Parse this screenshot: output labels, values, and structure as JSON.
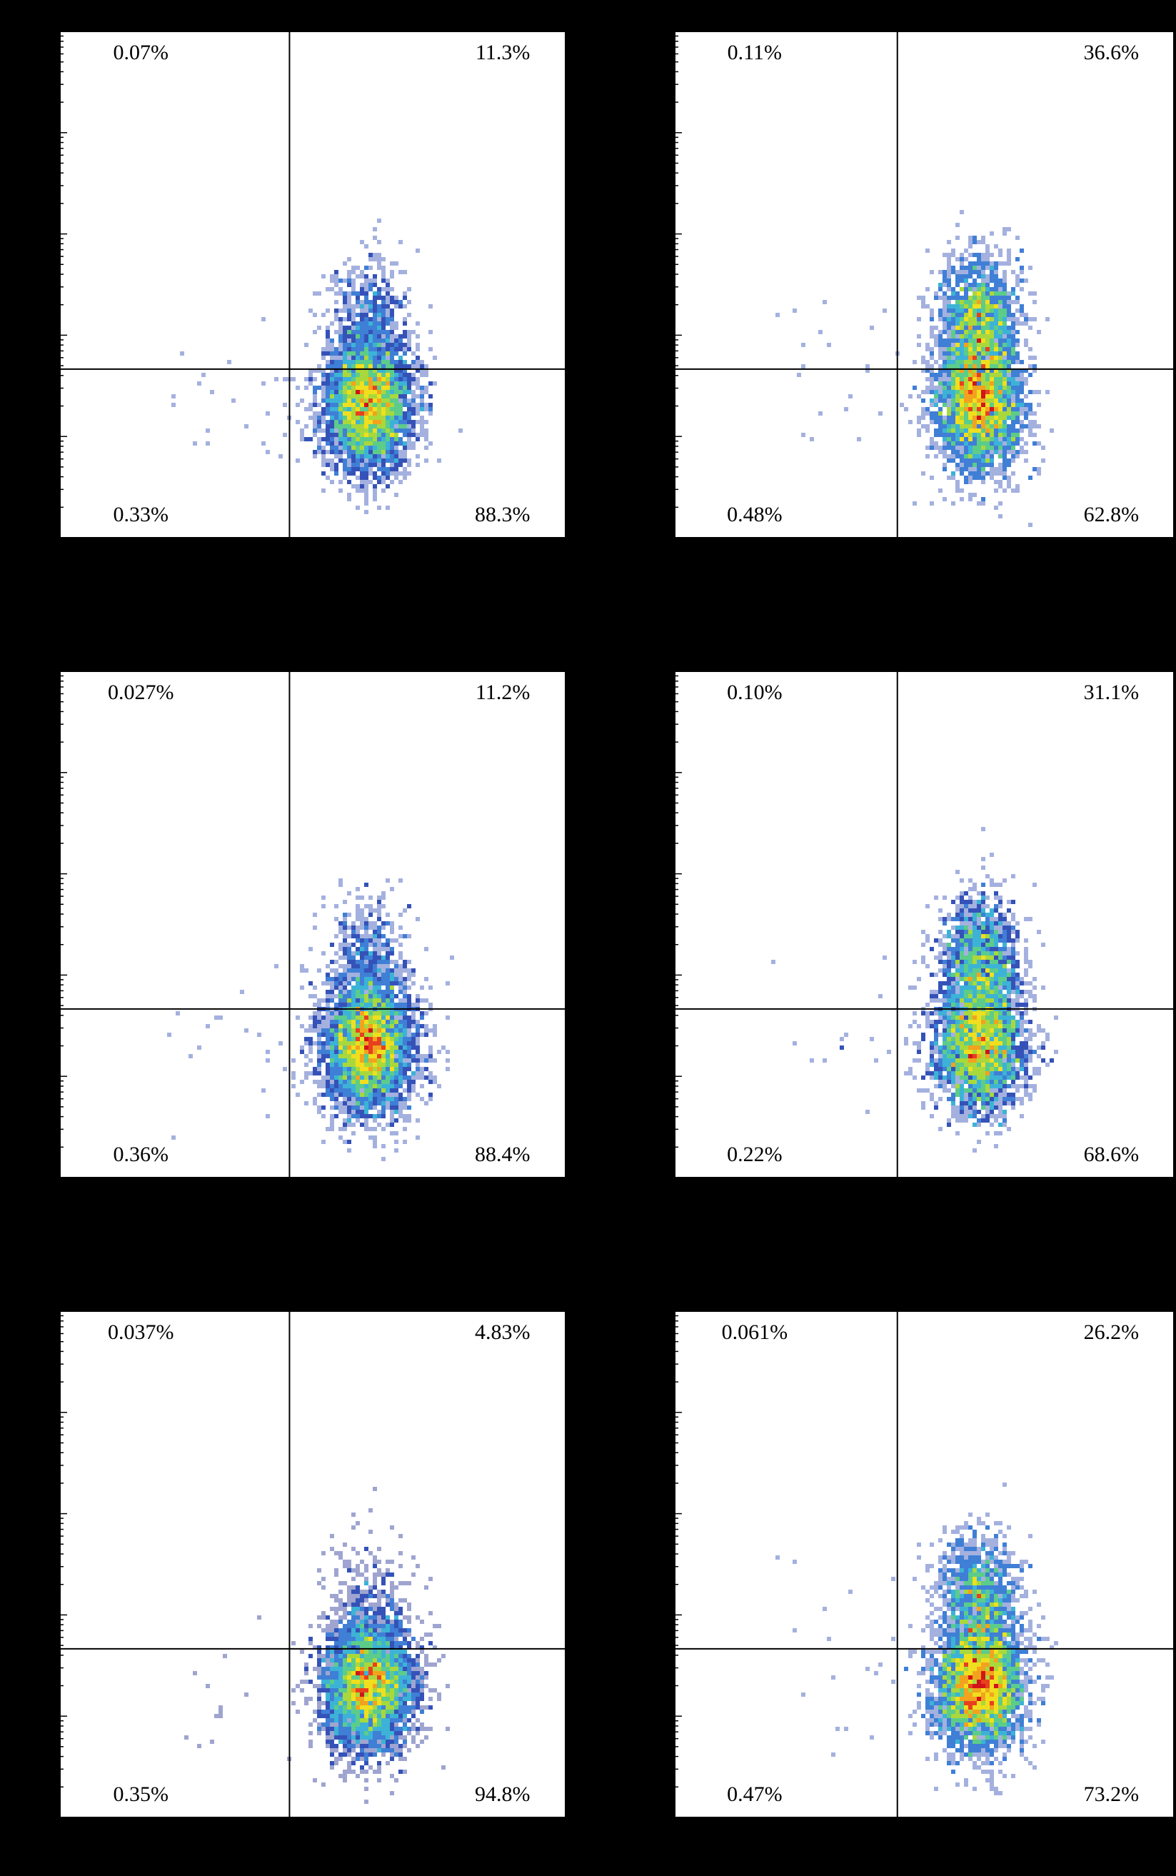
{
  "chart_data": [
    {
      "type": "scatter",
      "annotations": [
        "0.07%",
        "11.3%",
        "0.33%",
        "88.3%"
      ]
    },
    {
      "type": "scatter",
      "annotations": [
        "0.11%",
        "36.6%",
        "0.48%",
        "62.8%"
      ]
    },
    {
      "type": "scatter",
      "annotations": [
        "0.027%",
        "11.2%",
        "0.36%",
        "88.4%"
      ]
    },
    {
      "type": "scatter",
      "annotations": [
        "0.10%",
        "31.1%",
        "0.22%",
        "68.6%"
      ]
    },
    {
      "type": "scatter",
      "annotations": [
        "0.037%",
        "4.83%",
        "0.35%",
        "94.8%"
      ]
    },
    {
      "type": "scatter",
      "annotations": [
        "0.061%",
        "26.2%",
        "0.47%",
        "73.2%"
      ]
    }
  ]
}
